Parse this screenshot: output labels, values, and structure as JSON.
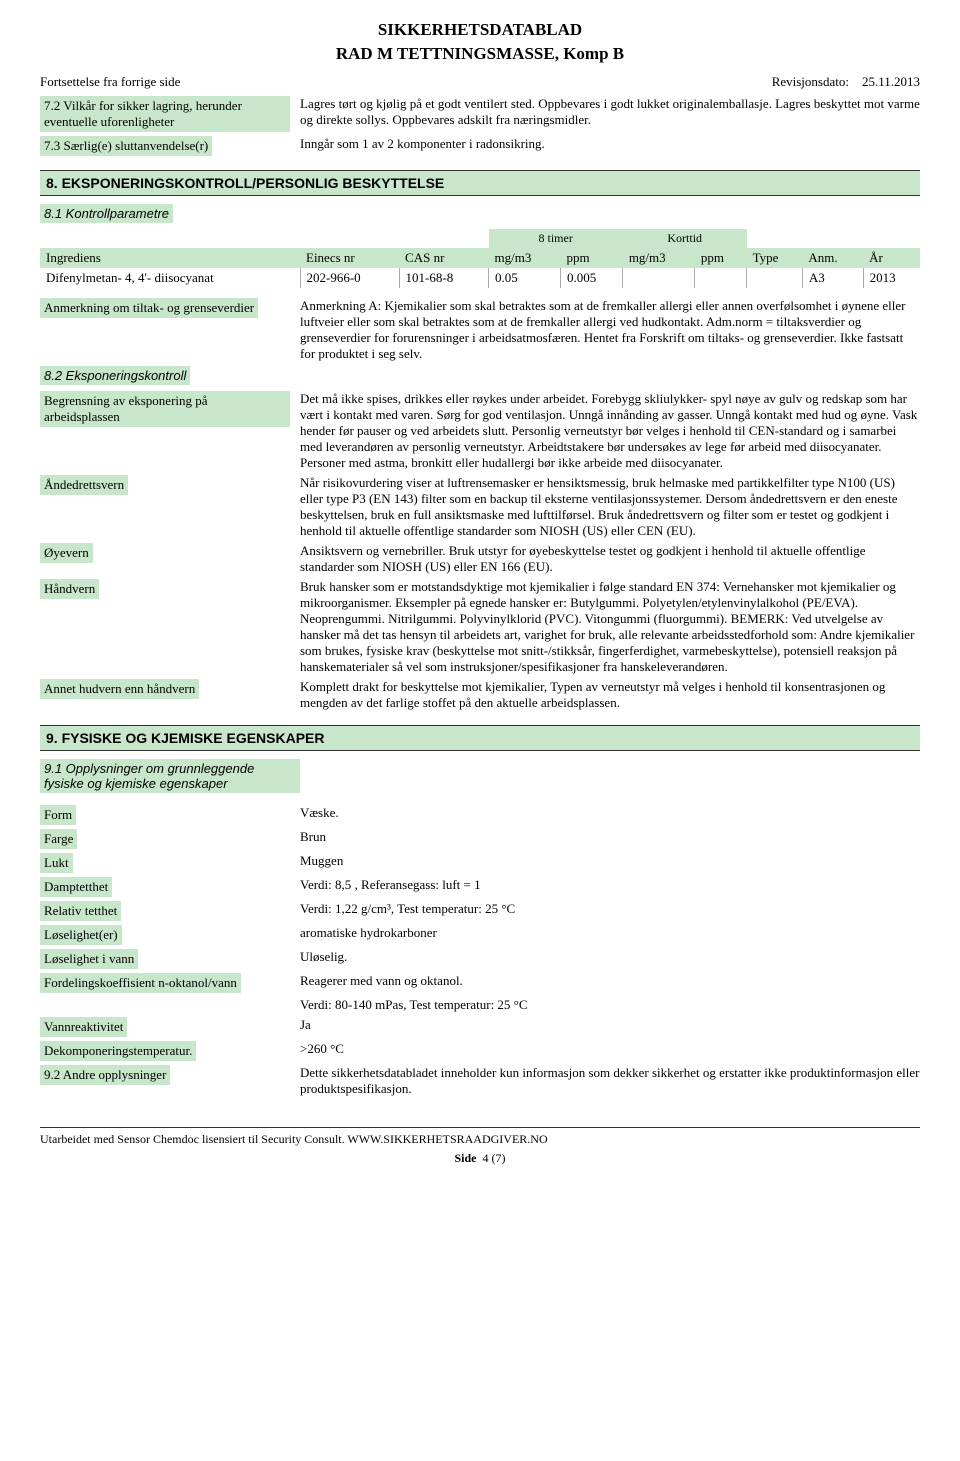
{
  "header": {
    "title1": "SIKKERHETSDATABLAD",
    "title2": "RAD M TETTNINGSMASSE, Komp B",
    "continuation": "Fortsettelse fra forrige side",
    "revision_label": "Revisjonsdato:",
    "revision_date": "25.11.2013"
  },
  "section7": {
    "items": [
      {
        "label": "7.2 Vilkår for sikker lagring, herunder eventuelle uforenligheter",
        "value": "Lagres tørt og kjølig på et godt ventilert sted. Oppbevares i godt lukket originalemballasje. Lagres beskyttet mot varme og direkte sollys. Oppbevares adskilt fra næringsmidler."
      },
      {
        "label": "7.3 Særlig(e) sluttanvendelse(r)",
        "value": "Inngår som 1 av 2 komponenter i radonsikring."
      }
    ]
  },
  "section8": {
    "title": "8. EKSPONERINGSKONTROLL/PERSONLIG BESKYTTELSE",
    "sub1": "8.1 Kontrollparametre",
    "table": {
      "group_headers": {
        "g1": "8 timer",
        "g2": "Korttid"
      },
      "columns": [
        "Ingrediens",
        "Einecs nr",
        "CAS nr",
        "mg/m3",
        "ppm",
        "mg/m3",
        "ppm",
        "Type",
        "Anm.",
        "År"
      ],
      "rows": [
        [
          "Difenylmetan- 4, 4'- diisocyanat",
          "202-966-0",
          "101-68-8",
          "0.05",
          "0.005",
          "",
          "",
          "",
          "A3",
          "2013"
        ]
      ]
    },
    "items": [
      {
        "label": "Anmerkning om tiltak- og grenseverdier",
        "value": "Anmerkning A: Kjemikalier som skal betraktes som at de fremkaller allergi eller annen overfølsomhet i øynene eller luftveier eller som skal betraktes som at de fremkaller allergi ved hudkontakt. Adm.norm = tiltaksverdier og grenseverdier for forurensninger i arbeidsatmosfæren. Hentet fra Forskrift om tiltaks- og grenseverdier. Ikke fastsatt for produktet i seg selv."
      }
    ],
    "sub2": "8.2 Eksponeringskontroll",
    "items2": [
      {
        "label": "Begrensning av eksponering på arbeidsplassen",
        "value": "Det må ikke spises, drikkes eller røykes under arbeidet. Forebygg skliulykker- spyl nøye av gulv og redskap som har vært i kontakt med varen. Sørg for god ventilasjon. Unngå innånding av gasser. Unngå kontakt med hud og øyne. Vask hender før pauser og ved arbeidets slutt. Personlig verneutstyr bør velges i henhold til CEN-standard og i samarbei med leverandøren av personlig verneutstyr. Arbeidtstakere bør undersøkes av lege før arbeid med diisocyanater. Personer med astma, bronkitt eller hudallergi bør ikke arbeide med diisocyanater."
      },
      {
        "label": "Åndedrettsvern",
        "value": "Når risikovurdering viser at luftrensemasker er hensiktsmessig, bruk helmaske med partikkelfilter type N100 (US) eller type P3 (EN 143) filter som en backup til eksterne ventilasjonssystemer. Dersom åndedrettsvern er den eneste beskyttelsen, bruk en full ansiktsmaske med lufttilførsel. Bruk åndedrettsvern og filter som er testet og godkjent i henhold til aktuelle offentlige standarder som NIOSH (US) eller CEN (EU)."
      },
      {
        "label": "Øyevern",
        "value": "Ansiktsvern og vernebriller. Bruk utstyr for øyebeskyttelse testet og godkjent i henhold til aktuelle offentlige standarder som NIOSH (US) eller EN 166 (EU)."
      },
      {
        "label": "Håndvern",
        "value": "Bruk hansker som er motstandsdyktige mot kjemikalier i følge standard EN 374: Vernehansker mot kjemikalier og mikroorganismer. Eksempler på egnede hansker er: Butylgummi. Polyetylen/etylenvinylalkohol (PE/EVA). Neoprengummi. Nitrilgummi. Polyvinylklorid (PVC). Vitongummi (fluorgummi). BEMERK: Ved utvelgelse av hansker må det tas hensyn til arbeidets art, varighet for bruk, alle relevante arbeidsstedforhold som: Andre kjemikalier som brukes, fysiske krav (beskyttelse mot snitt-/stikksår, fingerferdighet, varmebeskyttelse), potensiell reaksjon på hanskematerialer så vel som instruksjoner/spesifikasjoner fra hanskeleverandøren."
      },
      {
        "label": "Annet hudvern enn håndvern",
        "value": "Komplett drakt for beskyttelse mot kjemikalier, Typen av verneutstyr må velges i henhold til konsentrasjonen og mengden av det farlige stoffet på den aktuelle arbeidsplassen."
      }
    ]
  },
  "section9": {
    "title": "9. FYSISKE OG KJEMISKE EGENSKAPER",
    "sub1": "9.1 Opplysninger om grunnleggende fysiske og kjemiske egenskaper",
    "items": [
      {
        "label": "Form",
        "value": "Væske."
      },
      {
        "label": "Farge",
        "value": "Brun"
      },
      {
        "label": "Lukt",
        "value": "Muggen"
      },
      {
        "label": "Damptetthet",
        "value": "Verdi: 8,5 , Referansegass: luft = 1"
      },
      {
        "label": "Relativ tetthet",
        "value": "Verdi: 1,22 g/cm³, Test temperatur: 25 °C"
      },
      {
        "label": "Løselighet(er)",
        "value": "aromatiske hydrokarboner"
      },
      {
        "label": "Løselighet i vann",
        "value": "Uløselig."
      },
      {
        "label": "Fordelingskoeffisient n-oktanol/vann",
        "value": "Reagerer med vann og oktanol."
      },
      {
        "label": "",
        "value": "Verdi: 80-140 mPas, Test temperatur: 25 °C"
      },
      {
        "label": "Vannreaktivitet",
        "value": "Ja"
      },
      {
        "label": "Dekomponeringstemperatur.",
        "value": ">260 °C"
      },
      {
        "label": "9.2 Andre opplysninger",
        "value": "Dette sikkerhetsdatabladet inneholder kun informasjon som dekker sikkerhet og erstatter ikke produktinformasjon eller produktspesifikasjon."
      }
    ]
  },
  "footer": {
    "text": "Utarbeidet med Sensor Chemdoc lisensiert til Security Consult. WWW.SIKKERHETSRAADGIVER.NO",
    "page_label": "Side",
    "page_num": "4 (7)"
  },
  "colors": {
    "green_bg": "#c8e6c9",
    "border": "#333333"
  }
}
